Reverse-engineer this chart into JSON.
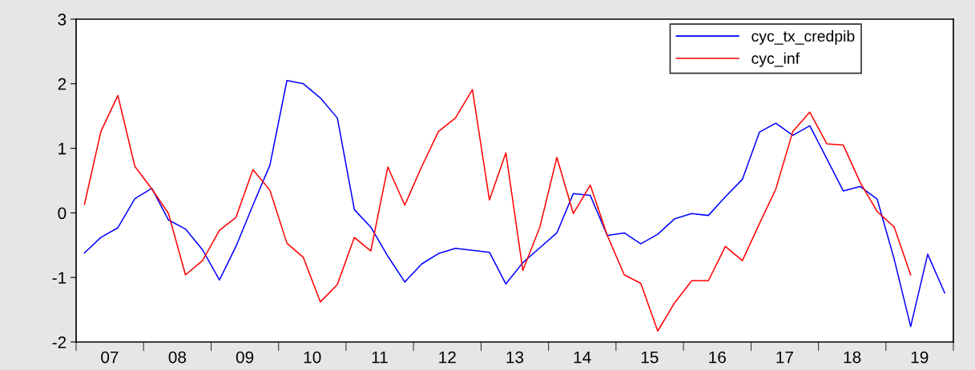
{
  "chart_data": {
    "type": "line",
    "x": [
      "2007-02-15",
      "2007-05-15",
      "2007-08-15",
      "2007-11-15",
      "2008-02-15",
      "2008-05-15",
      "2008-08-15",
      "2008-11-15",
      "2009-02-15",
      "2009-05-15",
      "2009-08-15",
      "2009-11-15",
      "2010-02-15",
      "2010-05-15",
      "2010-08-15",
      "2010-11-15",
      "2011-02-15",
      "2011-05-15",
      "2011-08-15",
      "2011-11-15",
      "2012-02-15",
      "2012-05-15",
      "2012-08-15",
      "2012-11-15",
      "2013-02-15",
      "2013-05-15",
      "2013-08-15",
      "2013-11-15",
      "2014-02-15",
      "2014-05-15",
      "2014-08-15",
      "2014-11-15",
      "2015-02-15",
      "2015-05-15",
      "2015-08-15",
      "2015-11-15",
      "2016-02-15",
      "2016-05-15",
      "2016-08-15",
      "2016-11-15",
      "2017-02-15",
      "2017-05-15",
      "2017-08-15",
      "2017-11-15",
      "2018-02-15",
      "2018-05-15",
      "2018-08-15",
      "2018-11-15",
      "2019-02-15",
      "2019-05-15",
      "2019-08-15",
      "2019-11-15"
    ],
    "series": [
      {
        "name": "cyc_tx_credpib",
        "color": "#0000ff",
        "values": [
          -0.62,
          -0.38,
          -0.23,
          0.22,
          0.38,
          -0.11,
          -0.25,
          -0.57,
          -1.04,
          -0.52,
          0.12,
          0.74,
          2.05,
          2.0,
          1.78,
          1.47,
          0.05,
          -0.22,
          -0.67,
          -1.07,
          -0.79,
          -0.63,
          -0.55,
          -0.58,
          -0.61,
          -1.1,
          -0.77,
          -0.54,
          -0.31,
          0.3,
          0.27,
          -0.35,
          -0.31,
          -0.48,
          -0.33,
          -0.09,
          -0.01,
          -0.04,
          0.25,
          0.52,
          1.25,
          1.39,
          1.2,
          1.35,
          0.84,
          0.34,
          0.41,
          0.21,
          -0.72,
          -1.76,
          -0.64,
          -1.24
        ]
      },
      {
        "name": "cyc_inf",
        "color": "#ff0000",
        "values": [
          0.13,
          1.26,
          1.82,
          0.72,
          0.37,
          -0.01,
          -0.96,
          -0.74,
          -0.27,
          -0.07,
          0.67,
          0.35,
          -0.47,
          -0.69,
          -1.38,
          -1.11,
          -0.38,
          -0.59,
          0.71,
          0.12,
          0.72,
          1.26,
          1.47,
          1.91,
          0.2,
          0.93,
          -0.89,
          -0.22,
          0.86,
          -0.01,
          0.43,
          -0.35,
          -0.96,
          -1.09,
          -1.83,
          -1.39,
          -1.05,
          -1.05,
          -0.52,
          -0.74,
          -0.17,
          0.37,
          1.26,
          1.56,
          1.07,
          1.05,
          0.47,
          0.02,
          -0.22,
          -0.96,
          null,
          null
        ]
      }
    ],
    "xlim": [
      "2007-01-01",
      "2020-01-01"
    ],
    "xticks": [
      {
        "value": "2007-01-01",
        "label": null
      },
      {
        "value": "2008-01-01",
        "label": null
      },
      {
        "value": "2009-01-01",
        "label": null
      },
      {
        "value": "2010-01-01",
        "label": null
      },
      {
        "value": "2011-01-01",
        "label": null
      },
      {
        "value": "2012-01-01",
        "label": null
      },
      {
        "value": "2013-01-01",
        "label": null
      },
      {
        "value": "2014-01-01",
        "label": null
      },
      {
        "value": "2015-01-01",
        "label": null
      },
      {
        "value": "2016-01-01",
        "label": null
      },
      {
        "value": "2017-01-01",
        "label": null
      },
      {
        "value": "2018-01-01",
        "label": null
      },
      {
        "value": "2019-01-01",
        "label": null
      },
      {
        "value": "2020-01-01",
        "label": null
      },
      {
        "value": "2007-07-02",
        "label": "07"
      },
      {
        "value": "2008-07-02",
        "label": "08"
      },
      {
        "value": "2009-07-02",
        "label": "09"
      },
      {
        "value": "2010-07-02",
        "label": "10"
      },
      {
        "value": "2011-07-02",
        "label": "11"
      },
      {
        "value": "2012-07-02",
        "label": "12"
      },
      {
        "value": "2013-07-02",
        "label": "13"
      },
      {
        "value": "2014-07-02",
        "label": "14"
      },
      {
        "value": "2015-07-02",
        "label": "15"
      },
      {
        "value": "2016-07-02",
        "label": "16"
      },
      {
        "value": "2017-07-02",
        "label": "17"
      },
      {
        "value": "2018-07-02",
        "label": "18"
      },
      {
        "value": "2019-07-02",
        "label": "19"
      }
    ],
    "ylim": [
      -2,
      3
    ],
    "yticks": [
      -2,
      -1,
      0,
      1,
      2,
      3
    ],
    "legend": "top right",
    "grid": false,
    "marker": "none",
    "line_style": "solid"
  }
}
